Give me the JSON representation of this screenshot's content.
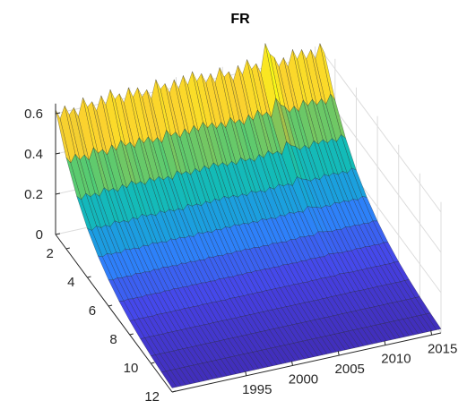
{
  "chart_data": {
    "type": "surface",
    "title": "FR",
    "xlabel": "",
    "ylabel": "",
    "zlabel": "",
    "grid": true,
    "colormap": "parula",
    "x_years": [
      1987,
      2016
    ],
    "x_ticks": [
      "1995",
      "2000",
      "2005",
      "2010",
      "2015"
    ],
    "x_tick_values": [
      1995,
      2000,
      2005,
      2010,
      2015
    ],
    "y_range": [
      1,
      12
    ],
    "y_ticks": [
      "2",
      "4",
      "6",
      "8",
      "10",
      "12"
    ],
    "y_tick_values": [
      2,
      4,
      6,
      8,
      10,
      12
    ],
    "z_range": [
      0,
      0.6
    ],
    "z_ticks": [
      "0",
      "0.2",
      "0.4",
      "0.6"
    ],
    "z_tick_values": [
      0,
      0.2,
      0.4,
      0.6
    ],
    "months_per_year": 12,
    "start_month_values": [
      0.62,
      0.63,
      0.61,
      0.65,
      0.62,
      0.64,
      0.66,
      0.63,
      0.65,
      0.64,
      0.62,
      0.66,
      0.63,
      0.64,
      0.65,
      0.66,
      0.64,
      0.63,
      0.65,
      0.62,
      0.64,
      0.66,
      0.63,
      0.72,
      0.64,
      0.63,
      0.66,
      0.65,
      0.64,
      0.66
    ],
    "decay_shape": "exponential",
    "end_month_value": 0.02,
    "colors": [
      "#3e26a8",
      "#4743e9",
      "#2f7ffb",
      "#16a7d8",
      "#13beb2",
      "#51cc74",
      "#c0bc3b",
      "#fbd22e",
      "#f9fb15"
    ]
  }
}
